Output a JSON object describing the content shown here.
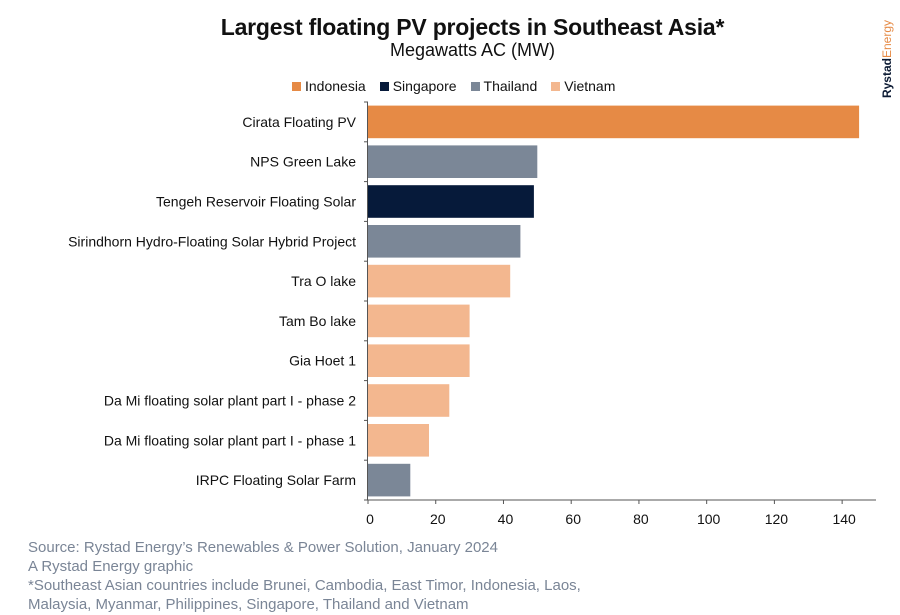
{
  "chart_data": {
    "type": "bar",
    "orientation": "horizontal",
    "title": "Largest floating PV projects in Southeast Asia*",
    "subtitle": "Megawatts AC (MW)",
    "xlabel": "",
    "ylabel": "",
    "xlim": [
      0,
      150
    ],
    "xticks": [
      0,
      20,
      40,
      60,
      80,
      100,
      120,
      140
    ],
    "grid": false,
    "legend_position": "top",
    "legend": [
      {
        "name": "Indonesia",
        "color": "#e68a45"
      },
      {
        "name": "Singapore",
        "color": "#061a3a"
      },
      {
        "name": "Thailand",
        "color": "#7b8797"
      },
      {
        "name": "Vietnam",
        "color": "#f3b78f"
      }
    ],
    "categories": [
      "Cirata Floating PV",
      "NPS Green Lake",
      "Tengeh Reservoir Floating Solar",
      "Sirindhorn Hydro-Floating Solar Hybrid Project",
      "Tra O lake",
      "Tam Bo lake",
      "Gia Hoet 1",
      "Da Mi floating solar plant part I - phase 2",
      "Da Mi floating solar plant part I - phase 1",
      "IRPC Floating Solar Farm"
    ],
    "values": [
      145,
      50,
      49,
      45,
      42,
      30,
      30,
      24,
      18,
      12.5
    ],
    "countries": [
      "Indonesia",
      "Thailand",
      "Singapore",
      "Thailand",
      "Vietnam",
      "Vietnam",
      "Vietnam",
      "Vietnam",
      "Vietnam",
      "Thailand"
    ]
  },
  "brand": {
    "part1": "Rystad",
    "part2": "Energy"
  },
  "footer": [
    "Source: Rystad Energy’s Renewables & Power Solution, January 2024",
    "A Rystad Energy graphic",
    "*Southeast Asian countries include Brunei, Cambodia, East Timor, Indonesia, Laos,",
    "Malaysia, Myanmar, Philippines, Singapore, Thailand and Vietnam"
  ]
}
